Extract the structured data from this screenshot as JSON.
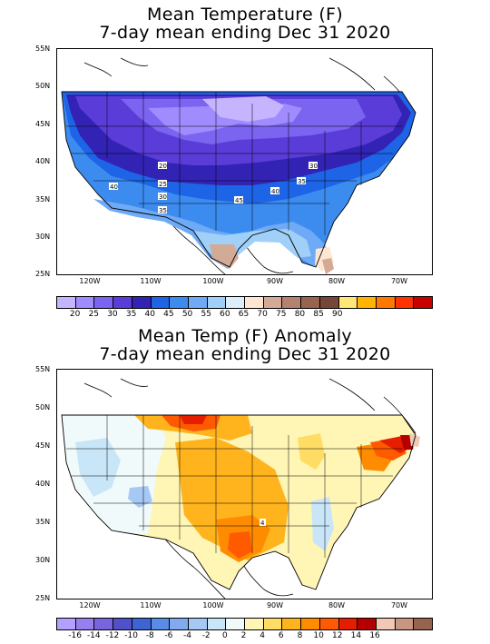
{
  "top_panel": {
    "title_line1": "Mean Temperature (F)",
    "title_line2": "7-day mean ending Dec 31 2020",
    "lat_labels": [
      "55N",
      "50N",
      "45N",
      "40N",
      "35N",
      "30N",
      "25N"
    ],
    "lon_labels": [
      "120W",
      "110W",
      "100W",
      "90W",
      "80W",
      "70W"
    ],
    "contour_labels": [
      "20",
      "25",
      "30",
      "35",
      "40",
      "45",
      "40",
      "30",
      "35"
    ],
    "colorbar_colors": [
      "#c6b4ff",
      "#a08cff",
      "#7a64f0",
      "#5a3cd8",
      "#3223b4",
      "#1e64e6",
      "#3c8cf0",
      "#6eaaf5",
      "#a0d0f8",
      "#dceefa",
      "#ffe6d2",
      "#d2aa96",
      "#b4826e",
      "#966450",
      "#784638",
      "#ffe678",
      "#ffb400",
      "#ff7800",
      "#ff3200",
      "#c80000"
    ],
    "colorbar_labels": [
      "20",
      "25",
      "30",
      "35",
      "40",
      "45",
      "50",
      "55",
      "60",
      "65",
      "70",
      "75",
      "80",
      "85",
      "90"
    ]
  },
  "bottom_panel": {
    "title_line1": "Mean Temp (F) Anomaly",
    "title_line2": "7-day mean ending Dec 31 2020",
    "lat_labels": [
      "55N",
      "50N",
      "45N",
      "40N",
      "35N",
      "30N",
      "25N"
    ],
    "lon_labels": [
      "120W",
      "110W",
      "100W",
      "90W",
      "80W",
      "70W"
    ],
    "contour_labels": [
      "4"
    ],
    "colorbar_colors": [
      "#b4a0ff",
      "#9680f0",
      "#7864dc",
      "#5050c8",
      "#3c64d2",
      "#5a8ce6",
      "#82aaf0",
      "#a6c8f5",
      "#c8e6f8",
      "#f0fafa",
      "#fff5b4",
      "#ffdc64",
      "#ffb41e",
      "#ff8c00",
      "#ff5a00",
      "#e61e00",
      "#b40000",
      "#f0c8b4",
      "#c89682",
      "#96644e"
    ],
    "colorbar_labels": [
      "-16",
      "-14",
      "-12",
      "-10",
      "-8",
      "-6",
      "-4",
      "-2",
      "0",
      "2",
      "4",
      "6",
      "8",
      "10",
      "12",
      "14",
      "16"
    ]
  }
}
